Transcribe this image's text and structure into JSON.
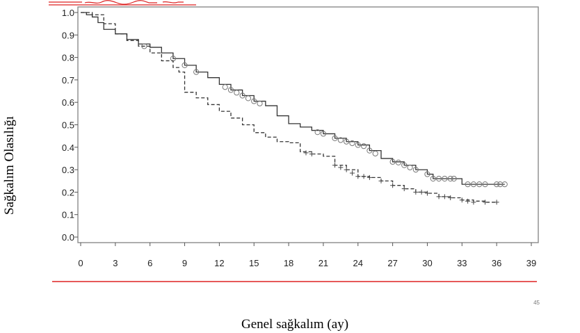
{
  "page_number": "45",
  "colors": {
    "accent_rule": "#dd2222",
    "frame": "#8a8a8a",
    "series": "#333333"
  },
  "chart_data": {
    "type": "line",
    "xlabel": "Genel sağkalım (ay)",
    "ylabel": "Sağkalım Olasılığı",
    "xlim": [
      0,
      39
    ],
    "ylim": [
      0,
      1.0
    ],
    "xticks": [
      "0",
      "3",
      "6",
      "9",
      "12",
      "15",
      "18",
      "21",
      "24",
      "27",
      "30",
      "33",
      "36",
      "39"
    ],
    "yticks": [
      "0.0",
      "0.1",
      "0.2",
      "0.3",
      "0.4",
      "0.5",
      "0.6",
      "0.7",
      "0.8",
      "0.9",
      "1.0"
    ],
    "grid": false,
    "series": [
      {
        "style": "solid",
        "censor_marker": "circle",
        "x": [
          0,
          0.5,
          1,
          1.5,
          2,
          3,
          4,
          5,
          6,
          7,
          8,
          9,
          10,
          11,
          12,
          13,
          14,
          15,
          16,
          17,
          18,
          19,
          20,
          21,
          22,
          23,
          24,
          25,
          26,
          27,
          28,
          29,
          30,
          30.5,
          31,
          32,
          33,
          34,
          35,
          36,
          36.7
        ],
        "y": [
          1.0,
          0.99,
          0.98,
          0.955,
          0.925,
          0.905,
          0.88,
          0.86,
          0.845,
          0.82,
          0.795,
          0.765,
          0.735,
          0.71,
          0.68,
          0.655,
          0.63,
          0.605,
          0.585,
          0.54,
          0.505,
          0.49,
          0.475,
          0.46,
          0.44,
          0.425,
          0.41,
          0.385,
          0.35,
          0.335,
          0.32,
          0.3,
          0.28,
          0.26,
          0.26,
          0.26,
          0.235,
          0.235,
          0.235,
          0.235,
          0.235
        ],
        "censored": [
          [
            5.5,
            0.85
          ],
          [
            8,
            0.795
          ],
          [
            9,
            0.765
          ],
          [
            10,
            0.735
          ],
          [
            12.5,
            0.668
          ],
          [
            13,
            0.655
          ],
          [
            13.5,
            0.643
          ],
          [
            14,
            0.63
          ],
          [
            14.5,
            0.618
          ],
          [
            15,
            0.605
          ],
          [
            15.5,
            0.595
          ],
          [
            20.5,
            0.467
          ],
          [
            21,
            0.46
          ],
          [
            22,
            0.44
          ],
          [
            22.5,
            0.432
          ],
          [
            23,
            0.425
          ],
          [
            23.5,
            0.418
          ],
          [
            24,
            0.41
          ],
          [
            24.5,
            0.405
          ],
          [
            25,
            0.385
          ],
          [
            25.5,
            0.372
          ],
          [
            27,
            0.335
          ],
          [
            27.5,
            0.332
          ],
          [
            28,
            0.32
          ],
          [
            28.5,
            0.31
          ],
          [
            29,
            0.3
          ],
          [
            30,
            0.28
          ],
          [
            30.5,
            0.26
          ],
          [
            31,
            0.26
          ],
          [
            31.5,
            0.26
          ],
          [
            32,
            0.26
          ],
          [
            32.3,
            0.26
          ],
          [
            33.5,
            0.235
          ],
          [
            34,
            0.235
          ],
          [
            34.5,
            0.235
          ],
          [
            35,
            0.235
          ],
          [
            36,
            0.235
          ],
          [
            36.3,
            0.235
          ],
          [
            36.7,
            0.235
          ]
        ]
      },
      {
        "style": "dashed",
        "censor_marker": "plus",
        "x": [
          0,
          1,
          2,
          3,
          4,
          5,
          6,
          7,
          8,
          8.5,
          9,
          10,
          11,
          12,
          13,
          14,
          15,
          16,
          17,
          18,
          19,
          20,
          21,
          22,
          23,
          24,
          25,
          26,
          27,
          28,
          29,
          30,
          31,
          32,
          33,
          34,
          35,
          36
        ],
        "y": [
          1.0,
          0.99,
          0.95,
          0.905,
          0.875,
          0.85,
          0.82,
          0.785,
          0.755,
          0.735,
          0.645,
          0.62,
          0.59,
          0.56,
          0.53,
          0.5,
          0.465,
          0.445,
          0.425,
          0.42,
          0.38,
          0.37,
          0.36,
          0.32,
          0.3,
          0.27,
          0.265,
          0.25,
          0.23,
          0.215,
          0.2,
          0.195,
          0.18,
          0.175,
          0.165,
          0.16,
          0.155,
          0.155
        ],
        "censored": [
          [
            19.5,
            0.375
          ],
          [
            20,
            0.37
          ],
          [
            22,
            0.32
          ],
          [
            22.5,
            0.31
          ],
          [
            23,
            0.3
          ],
          [
            23.5,
            0.285
          ],
          [
            24,
            0.27
          ],
          [
            24.5,
            0.27
          ],
          [
            25,
            0.265
          ],
          [
            26,
            0.25
          ],
          [
            27,
            0.23
          ],
          [
            28,
            0.215
          ],
          [
            29,
            0.2
          ],
          [
            29.5,
            0.2
          ],
          [
            30,
            0.195
          ],
          [
            31,
            0.18
          ],
          [
            31.5,
            0.18
          ],
          [
            32,
            0.175
          ],
          [
            33,
            0.165
          ],
          [
            33.5,
            0.16
          ],
          [
            34,
            0.155
          ],
          [
            35,
            0.155
          ],
          [
            36,
            0.155
          ]
        ]
      }
    ]
  }
}
